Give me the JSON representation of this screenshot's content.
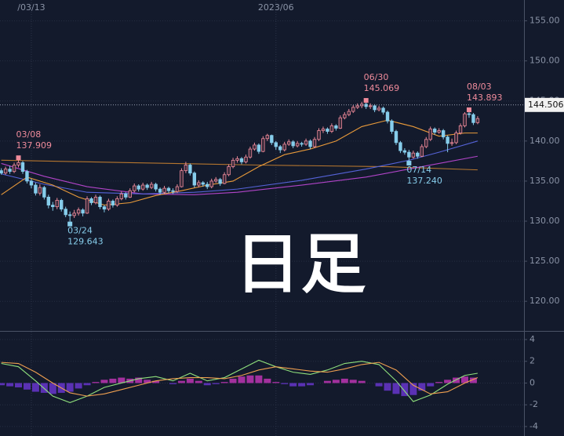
{
  "chart_data": [
    {
      "type": "candlestick",
      "xlim": [
        -0.3,
        121.8
      ],
      "xticks": [
        {
          "value": 7,
          "label": "/03/13"
        },
        {
          "value": 64,
          "label": "2023/06"
        }
      ],
      "ylim": [
        116.3,
        157.6
      ],
      "yticks": [
        {
          "value": 120,
          "label": "120.00"
        },
        {
          "value": 125,
          "label": "125.00"
        },
        {
          "value": 130,
          "label": "130.00"
        },
        {
          "value": 135,
          "label": "135.00"
        },
        {
          "value": 140,
          "label": "140.00"
        },
        {
          "value": 145,
          "label": "145.00"
        },
        {
          "value": 150,
          "label": "150.00"
        },
        {
          "value": 155,
          "label": "155.00"
        }
      ],
      "grid": true,
      "up_color": "#ef8b9b",
      "down_color": "#86cdeb",
      "open": [
        136.3,
        136.0,
        136.5,
        136.2,
        137.0,
        137.3,
        136.2,
        135.0,
        134.5,
        133.5,
        134.2,
        133.0,
        132.0,
        131.8,
        132.6,
        131.5,
        130.8,
        130.7,
        131.0,
        131.4,
        131.0,
        132.8,
        132.3,
        133.0,
        131.8,
        131.5,
        132.5,
        132.0,
        132.8,
        133.4,
        133.0,
        133.8,
        134.4,
        134.0,
        134.5,
        134.2,
        134.6,
        134.0,
        133.6,
        134.1,
        133.8,
        133.7,
        134.3,
        136.3,
        137.0,
        136.0,
        134.5,
        134.8,
        134.6,
        134.3,
        135.0,
        135.2,
        134.7,
        135.8,
        136.8,
        137.6,
        137.8,
        137.4,
        138.0,
        139.0,
        139.5,
        138.7,
        140.3,
        140.7,
        139.8,
        139.3,
        138.9,
        139.6,
        139.9,
        139.4,
        139.7,
        139.6,
        140.0,
        139.3,
        140.2,
        141.3,
        141.5,
        141.2,
        141.9,
        141.6,
        142.9,
        143.3,
        143.7,
        144.2,
        144.4,
        144.6,
        144.3,
        144.4,
        143.9,
        144.1,
        143.6,
        142.5,
        141.2,
        139.8,
        138.8,
        138.6,
        138.0,
        138.5,
        138.1,
        139.3,
        140.2,
        141.5,
        141.1,
        141.3,
        140.5,
        139.7,
        139.8,
        141.0,
        141.9,
        143.4,
        143.3,
        142.3
      ],
      "high": [
        136.6,
        136.8,
        136.9,
        137.3,
        137.909,
        137.5,
        136.4,
        135.3,
        134.8,
        134.6,
        134.4,
        133.3,
        132.4,
        132.9,
        132.8,
        131.8,
        131.2,
        131.4,
        131.7,
        131.6,
        133.1,
        133.0,
        133.3,
        133.2,
        132.0,
        132.8,
        132.7,
        133.1,
        133.7,
        133.6,
        134.1,
        134.7,
        134.6,
        134.8,
        134.7,
        134.9,
        134.8,
        134.2,
        134.4,
        134.3,
        134.1,
        134.6,
        136.6,
        137.4,
        137.2,
        136.2,
        135.1,
        135.0,
        134.9,
        135.3,
        135.5,
        135.4,
        136.1,
        137.1,
        137.9,
        138.1,
        138.0,
        138.3,
        139.3,
        139.8,
        139.7,
        140.6,
        140.9,
        140.8,
        140.0,
        139.5,
        139.9,
        140.2,
        140.1,
        140.0,
        139.9,
        140.3,
        140.2,
        140.5,
        141.6,
        141.8,
        141.7,
        142.2,
        142.1,
        143.2,
        143.6,
        144.0,
        144.5,
        144.7,
        144.9,
        145.069,
        144.7,
        144.6,
        144.4,
        144.3,
        143.8,
        142.7,
        141.4,
        140.0,
        139.1,
        138.9,
        138.8,
        138.7,
        139.6,
        140.5,
        141.8,
        141.7,
        141.6,
        141.5,
        140.7,
        140.3,
        141.3,
        142.2,
        143.6,
        143.893,
        143.5,
        143.1
      ],
      "low": [
        135.8,
        135.8,
        135.9,
        136.0,
        136.7,
        135.9,
        134.7,
        134.1,
        133.2,
        133.2,
        132.7,
        131.6,
        131.3,
        131.5,
        131.2,
        130.5,
        129.643,
        130.4,
        130.7,
        130.6,
        130.9,
        132.0,
        132.1,
        131.5,
        131.1,
        131.3,
        131.7,
        131.8,
        132.6,
        132.7,
        132.9,
        133.6,
        133.7,
        133.8,
        133.9,
        134.0,
        133.7,
        133.3,
        133.4,
        133.5,
        133.4,
        133.5,
        134.2,
        136.0,
        135.7,
        134.2,
        134.2,
        134.3,
        134.0,
        134.1,
        134.8,
        134.4,
        134.6,
        135.6,
        136.6,
        137.3,
        137.1,
        137.2,
        137.8,
        138.8,
        138.4,
        138.6,
        140.0,
        139.5,
        138.9,
        138.5,
        138.7,
        139.4,
        139.1,
        139.2,
        139.3,
        139.4,
        139.0,
        139.1,
        140.0,
        141.0,
        140.9,
        141.0,
        141.3,
        141.5,
        142.7,
        143.1,
        143.5,
        144.0,
        144.1,
        144.0,
        144.0,
        143.6,
        143.7,
        143.3,
        142.2,
        140.9,
        139.5,
        138.5,
        138.3,
        137.24,
        137.8,
        137.8,
        138.0,
        139.1,
        140.0,
        140.8,
        140.9,
        140.2,
        138.6,
        139.4,
        139.6,
        140.8,
        141.7,
        142.9,
        142.0,
        142.1
      ],
      "close": [
        136.0,
        136.5,
        136.2,
        137.0,
        137.3,
        136.2,
        135.0,
        134.5,
        133.5,
        134.2,
        133.0,
        132.0,
        131.8,
        132.6,
        131.5,
        130.8,
        130.7,
        131.0,
        131.4,
        131.0,
        132.8,
        132.3,
        133.0,
        131.8,
        131.5,
        132.5,
        132.0,
        132.8,
        133.4,
        133.0,
        133.8,
        134.4,
        134.0,
        134.5,
        134.2,
        134.6,
        134.0,
        133.6,
        134.1,
        133.8,
        133.7,
        134.3,
        136.3,
        137.0,
        136.0,
        134.5,
        134.8,
        134.6,
        134.3,
        135.0,
        135.2,
        134.7,
        135.8,
        136.8,
        137.6,
        137.8,
        137.4,
        138.0,
        139.0,
        139.5,
        138.7,
        140.3,
        140.7,
        139.8,
        139.3,
        138.9,
        139.6,
        139.9,
        139.4,
        139.7,
        139.6,
        140.0,
        139.3,
        140.2,
        141.3,
        141.5,
        141.2,
        141.9,
        141.6,
        142.9,
        143.3,
        143.7,
        144.2,
        144.4,
        144.6,
        144.3,
        144.4,
        143.9,
        144.1,
        143.6,
        142.5,
        141.2,
        139.8,
        138.8,
        138.6,
        138.0,
        138.5,
        138.1,
        139.3,
        140.2,
        141.5,
        141.1,
        141.3,
        140.5,
        139.7,
        139.8,
        141.0,
        141.9,
        143.4,
        143.3,
        142.3,
        142.8
      ],
      "lines": [
        {
          "color": "#b5762f",
          "x": [
            0,
            30,
            60,
            90,
            111
          ],
          "values": [
            137.6,
            137.3,
            137.0,
            136.8,
            136.4
          ]
        },
        {
          "color": "#b144c8",
          "x": [
            0,
            10,
            20,
            33,
            45,
            55,
            70,
            85,
            95,
            102,
            111
          ],
          "values": [
            137.2,
            135.6,
            134.3,
            133.4,
            133.3,
            133.6,
            134.5,
            135.5,
            136.5,
            137.2,
            138.1
          ]
        },
        {
          "color": "#5563d8",
          "x": [
            0,
            10,
            20,
            33,
            45,
            55,
            70,
            85,
            95,
            102,
            111
          ],
          "values": [
            135.9,
            134.6,
            133.6,
            133.4,
            133.6,
            134.0,
            135.1,
            136.5,
            137.6,
            138.6,
            140.0
          ]
        },
        {
          "color": "#e99a3a",
          "x": [
            0,
            6,
            12,
            18,
            24,
            30,
            36,
            42,
            48,
            54,
            60,
            66,
            72,
            78,
            84,
            90,
            96,
            102,
            108,
            111
          ],
          "values": [
            133.3,
            135.5,
            134.5,
            133.0,
            132.0,
            132.3,
            133.2,
            133.8,
            134.5,
            135.0,
            136.8,
            138.3,
            139.0,
            140.0,
            141.8,
            142.6,
            141.8,
            140.6,
            141.0,
            141.0
          ]
        }
      ],
      "annotations": [
        {
          "date": "03/08",
          "value": 137.909,
          "at": 4,
          "position": "above",
          "color": "#ef8b9b"
        },
        {
          "date": "03/24",
          "value": 129.643,
          "at": 16,
          "position": "below",
          "color": "#86cdeb"
        },
        {
          "date": "06/30",
          "value": 145.069,
          "at": 85,
          "position": "above",
          "color": "#ef8b9b"
        },
        {
          "date": "07/14",
          "value": 137.24,
          "value_label": "137.240",
          "at": 95,
          "position": "below",
          "color": "#86cdeb"
        },
        {
          "date": "08/03",
          "value": 143.893,
          "at": 109,
          "position": "above",
          "color": "#ef8b9b"
        }
      ],
      "last_price": 144.506,
      "handwriting": "日足"
    },
    {
      "type": "macd",
      "xlim": [
        -0.3,
        121.8
      ],
      "ylim": [
        -4.87,
        4.65
      ],
      "yticks": [
        -4,
        -2,
        0,
        2,
        4
      ],
      "lines": [
        {
          "color": "#8fe07c",
          "x": [
            0,
            4,
            8,
            12,
            16,
            20,
            24,
            28,
            32,
            36,
            40,
            44,
            48,
            52,
            56,
            60,
            64,
            68,
            72,
            76,
            80,
            84,
            88,
            92,
            96,
            100,
            104,
            108,
            111
          ],
          "values": [
            1.8,
            1.5,
            0.2,
            -1.2,
            -1.8,
            -1.2,
            -0.4,
            0.0,
            0.4,
            0.6,
            0.2,
            0.9,
            0.2,
            0.5,
            1.3,
            2.1,
            1.5,
            1.0,
            0.8,
            1.2,
            1.8,
            2.0,
            1.7,
            0.2,
            -1.7,
            -1.1,
            -0.1,
            0.7,
            0.9
          ]
        },
        {
          "color": "#f0a050",
          "x": [
            0,
            4,
            8,
            12,
            16,
            20,
            24,
            28,
            32,
            36,
            40,
            44,
            48,
            52,
            56,
            60,
            64,
            68,
            72,
            76,
            80,
            84,
            88,
            92,
            96,
            100,
            104,
            108,
            111
          ],
          "values": [
            1.9,
            1.8,
            1.0,
            0.0,
            -0.9,
            -1.2,
            -1.0,
            -0.6,
            -0.2,
            0.2,
            0.4,
            0.5,
            0.5,
            0.4,
            0.7,
            1.2,
            1.5,
            1.3,
            1.1,
            1.0,
            1.3,
            1.7,
            1.9,
            1.2,
            -0.2,
            -1.0,
            -0.8,
            0.0,
            0.5
          ]
        }
      ],
      "histogram": {
        "up_color": "#a3309e",
        "down_color": "#5a31b4",
        "x": [
          0,
          2,
          4,
          6,
          8,
          10,
          12,
          14,
          16,
          18,
          20,
          22,
          24,
          26,
          28,
          30,
          32,
          34,
          36,
          38,
          40,
          42,
          44,
          46,
          48,
          50,
          52,
          54,
          56,
          58,
          60,
          62,
          64,
          66,
          68,
          70,
          72,
          74,
          76,
          78,
          80,
          82,
          84,
          86,
          88,
          90,
          92,
          94,
          96,
          98,
          100,
          102,
          104,
          106,
          108,
          110
        ],
        "values": [
          -0.2,
          -0.3,
          -0.4,
          -0.6,
          -0.8,
          -0.9,
          -1.0,
          -0.9,
          -0.8,
          -0.5,
          -0.2,
          0.1,
          0.3,
          0.4,
          0.5,
          0.4,
          0.5,
          0.3,
          0.2,
          0.0,
          -0.1,
          0.2,
          0.4,
          0.2,
          -0.2,
          -0.1,
          0.1,
          0.4,
          0.6,
          0.7,
          0.7,
          0.4,
          0.1,
          -0.1,
          -0.3,
          -0.3,
          -0.2,
          0.0,
          0.2,
          0.3,
          0.4,
          0.3,
          0.2,
          0.0,
          -0.3,
          -0.7,
          -1.0,
          -1.2,
          -1.1,
          -0.7,
          -0.3,
          0.1,
          0.3,
          0.5,
          0.6,
          0.5
        ]
      }
    }
  ]
}
